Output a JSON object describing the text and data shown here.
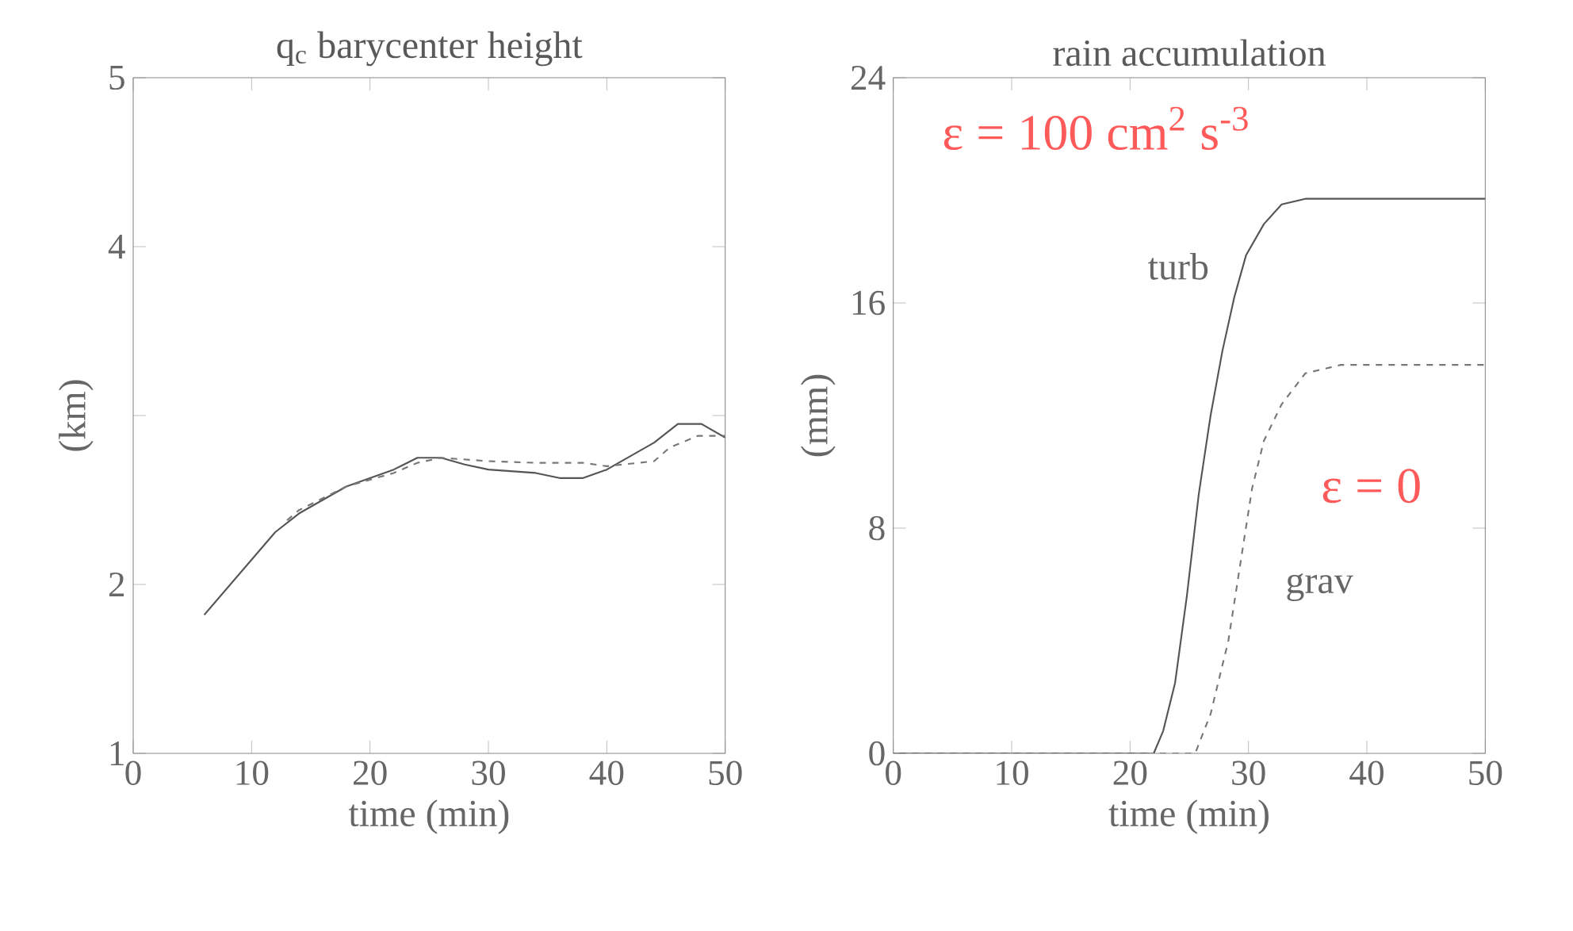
{
  "chart_data": [
    {
      "type": "line",
      "title": "q$_{c}$ barycenter height",
      "xlabel": "time (min)",
      "ylabel": "(km)",
      "xlim": [
        0,
        50
      ],
      "ylim": [
        1,
        5
      ],
      "xticks": [
        0,
        10,
        20,
        30,
        40,
        50
      ],
      "yticks": [
        1,
        2,
        {
          "value": 3,
          "label": null
        },
        4,
        5
      ],
      "series": [
        {
          "color": "#555555",
          "line_style": "solid",
          "x": [
            6,
            12,
            14,
            18,
            22,
            24,
            26,
            28,
            30,
            34,
            36,
            38,
            40,
            44,
            46,
            48,
            50
          ],
          "values": [
            1.82,
            2.31,
            2.42,
            2.58,
            2.68,
            2.75,
            2.75,
            2.71,
            2.68,
            2.66,
            2.63,
            2.63,
            2.68,
            2.84,
            2.95,
            2.95,
            2.87
          ]
        },
        {
          "color": "#777777",
          "line_style": "dashed",
          "x": [
            13,
            14,
            18,
            22,
            24,
            26,
            30,
            34,
            38,
            40,
            44,
            45.3,
            47.7,
            50
          ],
          "values": [
            2.38,
            2.44,
            2.58,
            2.66,
            2.72,
            2.75,
            2.73,
            2.72,
            2.72,
            2.7,
            2.73,
            2.81,
            2.88,
            2.88
          ]
        }
      ]
    },
    {
      "type": "line",
      "title": "rain accumulation",
      "xlabel": "time (min)",
      "ylabel": "(mm)",
      "xlim": [
        0,
        50
      ],
      "ylim": [
        0,
        24
      ],
      "xticks": [
        0,
        10,
        20,
        30,
        40,
        50
      ],
      "yticks": [
        0,
        8,
        16,
        24
      ],
      "annotations": [
        "ε = 100 cm$^{2}$ s$^{-3}$",
        "ε = 0"
      ],
      "series": [
        {
          "name": "turb",
          "color": "#555555",
          "line_style": "solid",
          "x": [
            0,
            22,
            22.8,
            23.8,
            24.8,
            25.8,
            26.8,
            27.8,
            28.8,
            29.8,
            31.3,
            32.8,
            34.8,
            50
          ],
          "values": [
            0,
            0,
            0.8,
            2.5,
            5.6,
            9.2,
            12.0,
            14.3,
            16.2,
            17.7,
            18.8,
            19.5,
            19.7,
            19.7
          ]
        },
        {
          "name": "grav",
          "color": "#777777",
          "line_style": "dashed",
          "x": [
            0,
            25.5,
            26.8,
            28.3,
            29.3,
            30.3,
            31.3,
            32.8,
            34.8,
            37.8,
            40.3,
            50
          ],
          "values": [
            0,
            0,
            1.4,
            4.0,
            6.7,
            9.4,
            11.1,
            12.4,
            13.5,
            13.8,
            13.8,
            13.8
          ]
        }
      ]
    }
  ]
}
